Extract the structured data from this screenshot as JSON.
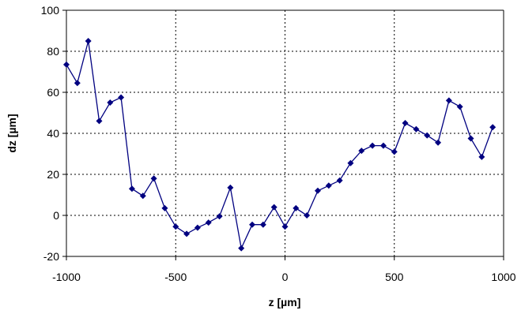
{
  "chart_data": {
    "type": "line",
    "title": "",
    "xlabel": "z [µm]",
    "ylabel": "dz [µm]",
    "xlim": [
      -1000,
      1000
    ],
    "ylim": [
      -20,
      100
    ],
    "x_ticks": [
      -1000,
      -500,
      0,
      500,
      1000
    ],
    "y_ticks": [
      -20,
      0,
      20,
      40,
      60,
      80,
      100
    ],
    "grid": true,
    "legend": "none",
    "series": [
      {
        "color": "#000080",
        "marker": "diamond",
        "points": [
          {
            "x": -1000,
            "y": 73.5
          },
          {
            "x": -950,
            "y": 64.5
          },
          {
            "x": -900,
            "y": 85
          },
          {
            "x": -850,
            "y": 46
          },
          {
            "x": -800,
            "y": 55
          },
          {
            "x": -750,
            "y": 57.5
          },
          {
            "x": -700,
            "y": 13
          },
          {
            "x": -650,
            "y": 9.5
          },
          {
            "x": -600,
            "y": 18
          },
          {
            "x": -550,
            "y": 3.5
          },
          {
            "x": -500,
            "y": -5.5
          },
          {
            "x": -450,
            "y": -9
          },
          {
            "x": -400,
            "y": -6
          },
          {
            "x": -350,
            "y": -3.5
          },
          {
            "x": -300,
            "y": -0.5
          },
          {
            "x": -250,
            "y": 13.5
          },
          {
            "x": -200,
            "y": -16
          },
          {
            "x": -150,
            "y": -4.5
          },
          {
            "x": -100,
            "y": -4.5
          },
          {
            "x": -50,
            "y": 4
          },
          {
            "x": 0,
            "y": -5.5
          },
          {
            "x": 50,
            "y": 3.5
          },
          {
            "x": 100,
            "y": 0
          },
          {
            "x": 150,
            "y": 12
          },
          {
            "x": 200,
            "y": 14.5
          },
          {
            "x": 250,
            "y": 17
          },
          {
            "x": 300,
            "y": 25.5
          },
          {
            "x": 350,
            "y": 31.5
          },
          {
            "x": 400,
            "y": 34
          },
          {
            "x": 450,
            "y": 34
          },
          {
            "x": 500,
            "y": 31
          },
          {
            "x": 550,
            "y": 45
          },
          {
            "x": 600,
            "y": 42
          },
          {
            "x": 650,
            "y": 39
          },
          {
            "x": 700,
            "y": 35.5
          },
          {
            "x": 750,
            "y": 56
          },
          {
            "x": 800,
            "y": 53
          },
          {
            "x": 850,
            "y": 37.5
          },
          {
            "x": 900,
            "y": 28.5
          },
          {
            "x": 950,
            "y": 43
          }
        ]
      }
    ]
  }
}
